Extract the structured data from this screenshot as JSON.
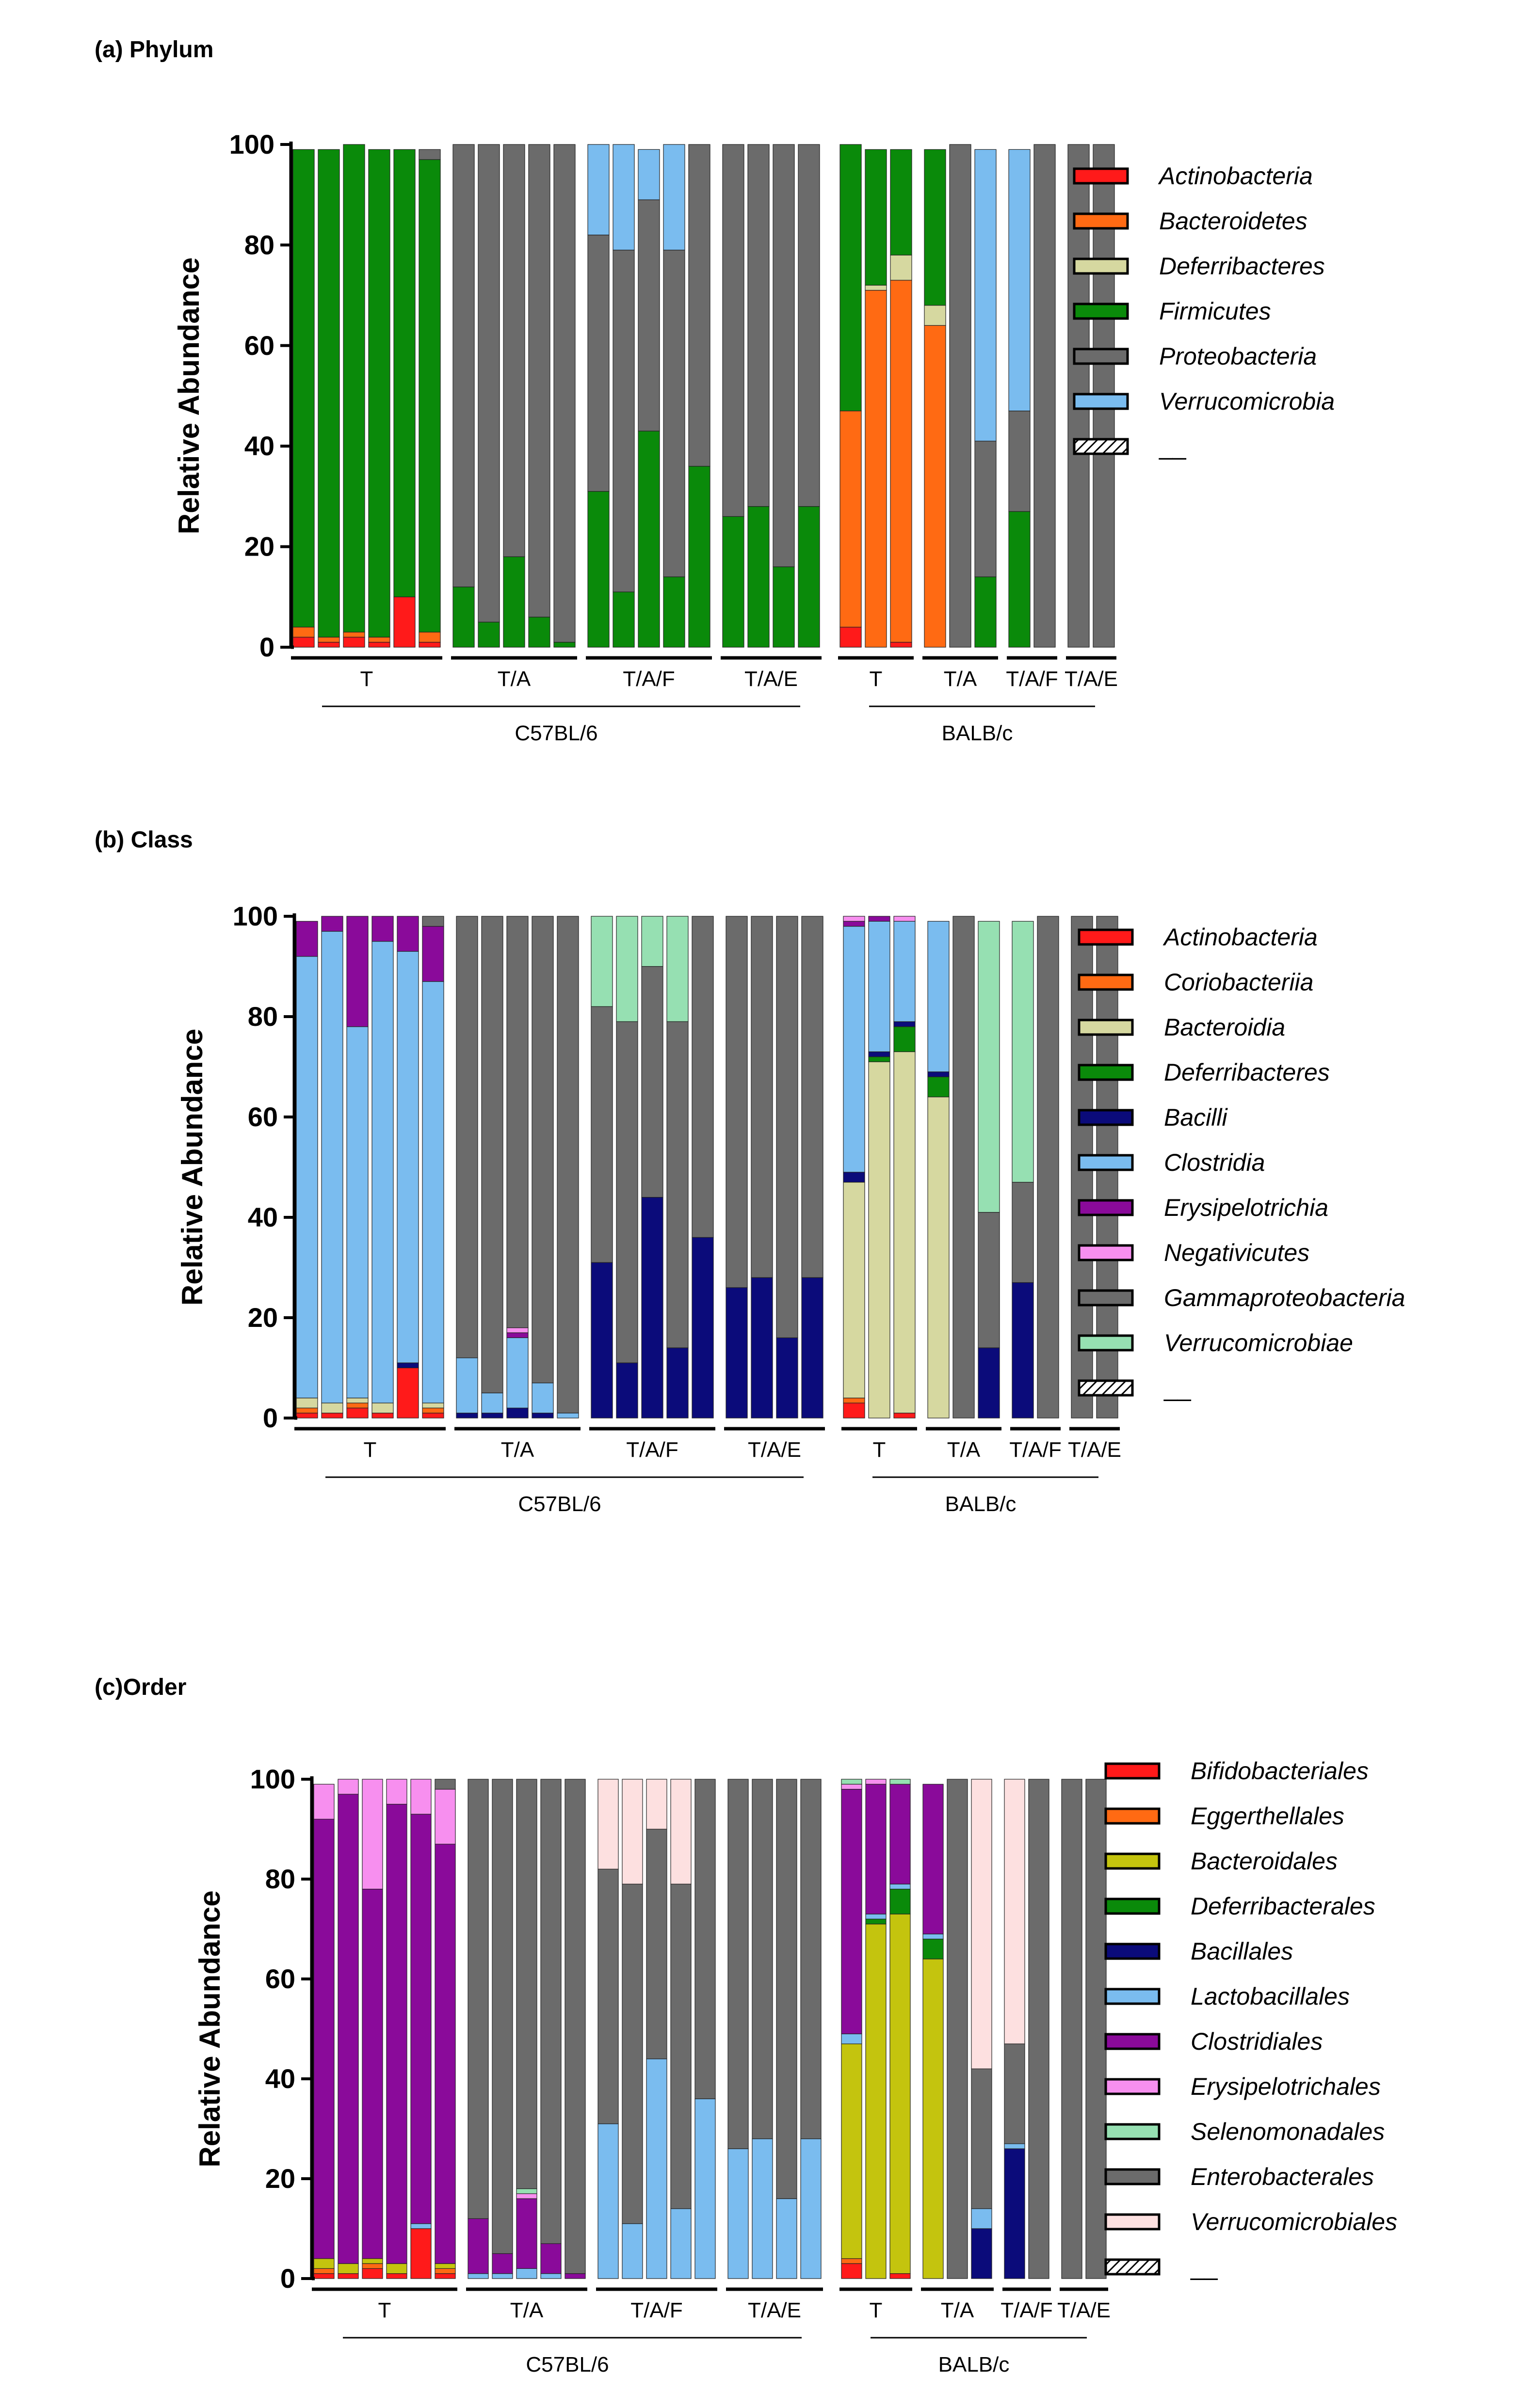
{
  "chart_data": [
    {
      "type": "stacked-bar",
      "panel_label": "(a) Phylum",
      "title": "Phylum",
      "ylabel": "Relative Abundance",
      "ylim": [
        0,
        100
      ],
      "yticks": [
        "0",
        "20",
        "40",
        "60",
        "80",
        "100"
      ],
      "groups": [
        {
          "label": "T",
          "strain": "C57BL/6",
          "bar_count": 6
        },
        {
          "label": "T/A",
          "strain": "C57BL/6",
          "bar_count": 5
        },
        {
          "label": "T/A/F",
          "strain": "C57BL/6",
          "bar_count": 5
        },
        {
          "label": "T/A/E",
          "strain": "C57BL/6",
          "bar_count": 4
        },
        {
          "label": "T",
          "strain": "BALB/c",
          "bar_count": 3
        },
        {
          "label": "T/A",
          "strain": "BALB/c",
          "bar_count": 3
        },
        {
          "label": "T/A/F",
          "strain": "BALB/c",
          "bar_count": 2
        },
        {
          "label": "T/A/E",
          "strain": "BALB/c",
          "bar_count": 2
        }
      ],
      "strains": [
        "C57BL/6",
        "BALB/c"
      ],
      "series": [
        {
          "name": "Actinobacteria",
          "color": "#ff1a1a",
          "values": [
            2,
            1,
            2,
            1,
            10,
            1,
            0,
            0,
            0,
            0,
            0,
            0,
            0,
            0,
            0,
            0,
            0,
            0,
            0,
            0,
            4,
            0,
            1,
            0,
            0,
            0,
            0,
            0,
            0,
            0
          ]
        },
        {
          "name": "Bacteroidetes",
          "color": "#ff6a13",
          "values": [
            2,
            1,
            1,
            1,
            0,
            2,
            0,
            0,
            0,
            0,
            0,
            0,
            0,
            0,
            0,
            0,
            0,
            0,
            0,
            0,
            43,
            71,
            72,
            64,
            0,
            0,
            0,
            0,
            0,
            0
          ]
        },
        {
          "name": "Deferribacteres",
          "color": "#d6d8a0",
          "values": [
            0,
            0,
            0,
            0,
            0,
            0,
            0,
            0,
            0,
            0,
            0,
            0,
            0,
            0,
            0,
            0,
            0,
            0,
            0,
            0,
            0,
            1,
            5,
            4,
            0,
            0,
            0,
            0,
            0,
            0
          ]
        },
        {
          "name": "Firmicutes",
          "color": "#0a8a0a",
          "values": [
            95,
            97,
            97,
            97,
            89,
            94,
            12,
            5,
            18,
            6,
            1,
            31,
            11,
            43,
            14,
            36,
            26,
            28,
            16,
            28,
            53,
            27,
            21,
            31,
            0,
            14,
            27,
            0,
            0,
            0
          ]
        },
        {
          "name": "Proteobacteria",
          "color": "#6b6b6b",
          "values": [
            0,
            0,
            0,
            0,
            0,
            2,
            88,
            95,
            82,
            94,
            99,
            51,
            68,
            46,
            65,
            64,
            74,
            72,
            84,
            72,
            0,
            0,
            0,
            0,
            100,
            27,
            20,
            100,
            100,
            100
          ]
        },
        {
          "name": "Verrucomicrobia",
          "color": "#7abcef",
          "values": [
            0,
            0,
            0,
            0,
            0,
            0,
            0,
            0,
            0,
            0,
            0,
            18,
            21,
            10,
            21,
            0,
            0,
            0,
            0,
            0,
            0,
            0,
            0,
            0,
            0,
            58,
            52,
            0,
            0,
            0
          ]
        },
        {
          "name": "__",
          "color": "#ffffff",
          "hatched": true,
          "values": []
        }
      ]
    },
    {
      "type": "stacked-bar",
      "panel_label": "(b) Class",
      "title": "Class",
      "ylabel": "Relative Abundance",
      "ylim": [
        0,
        100
      ],
      "yticks": [
        "0",
        "20",
        "40",
        "60",
        "80",
        "100"
      ],
      "groups": [
        {
          "label": "T",
          "strain": "C57BL/6",
          "bar_count": 6
        },
        {
          "label": "T/A",
          "strain": "C57BL/6",
          "bar_count": 5
        },
        {
          "label": "T/A/F",
          "strain": "C57BL/6",
          "bar_count": 5
        },
        {
          "label": "T/A/E",
          "strain": "C57BL/6",
          "bar_count": 4
        },
        {
          "label": "T",
          "strain": "BALB/c",
          "bar_count": 3
        },
        {
          "label": "T/A",
          "strain": "BALB/c",
          "bar_count": 3
        },
        {
          "label": "T/A/F",
          "strain": "BALB/c",
          "bar_count": 2
        },
        {
          "label": "T/A/E",
          "strain": "BALB/c",
          "bar_count": 2
        }
      ],
      "strains": [
        "C57BL/6",
        "BALB/c"
      ],
      "series": [
        {
          "name": "Actinobacteria",
          "color": "#ff1a1a",
          "values": [
            1,
            1,
            2,
            1,
            10,
            1,
            0,
            0,
            0,
            0,
            0,
            0,
            0,
            0,
            0,
            0,
            0,
            0,
            0,
            0,
            3,
            0,
            1,
            0,
            0,
            0,
            0,
            0,
            0,
            0
          ]
        },
        {
          "name": "Coriobacteriia",
          "color": "#ff6a13",
          "values": [
            1,
            0,
            1,
            0,
            0,
            1,
            0,
            0,
            0,
            0,
            0,
            0,
            0,
            0,
            0,
            0,
            0,
            0,
            0,
            0,
            1,
            0,
            0,
            0,
            0,
            0,
            0,
            0,
            0,
            0
          ]
        },
        {
          "name": "Bacteroidia",
          "color": "#d6d8a0",
          "values": [
            2,
            2,
            1,
            2,
            0,
            1,
            0,
            0,
            0,
            0,
            0,
            0,
            0,
            0,
            0,
            0,
            0,
            0,
            0,
            0,
            43,
            71,
            72,
            64,
            0,
            0,
            0,
            0,
            0,
            0
          ]
        },
        {
          "name": "Deferribacteres",
          "color": "#0a8a0a",
          "values": [
            0,
            0,
            0,
            0,
            0,
            0,
            0,
            0,
            0,
            0,
            0,
            0,
            0,
            0,
            0,
            0,
            0,
            0,
            0,
            0,
            0,
            1,
            5,
            4,
            0,
            0,
            0,
            0,
            0,
            0
          ]
        },
        {
          "name": "Bacilli",
          "color": "#0b0b7a",
          "values": [
            0,
            0,
            0,
            0,
            1,
            0,
            1,
            1,
            2,
            1,
            0,
            31,
            11,
            44,
            14,
            36,
            26,
            28,
            16,
            28,
            2,
            1,
            1,
            1,
            0,
            14,
            27,
            0,
            0,
            0
          ]
        },
        {
          "name": "Clostridia",
          "color": "#7abcef",
          "values": [
            88,
            94,
            74,
            92,
            82,
            84,
            11,
            4,
            14,
            6,
            1,
            0,
            0,
            0,
            0,
            0,
            0,
            0,
            0,
            0,
            49,
            26,
            20,
            30,
            0,
            0,
            0,
            0,
            0,
            0
          ]
        },
        {
          "name": "Erysipelotrichia",
          "color": "#8a0a9a",
          "values": [
            7,
            3,
            22,
            5,
            7,
            11,
            0,
            0,
            1,
            0,
            0,
            0,
            0,
            0,
            0,
            0,
            0,
            0,
            0,
            0,
            1,
            1,
            0,
            0,
            0,
            0,
            0,
            0,
            0,
            0
          ]
        },
        {
          "name": "Negativicutes",
          "color": "#f78fef",
          "values": [
            0,
            0,
            0,
            0,
            0,
            0,
            0,
            0,
            1,
            0,
            0,
            0,
            0,
            0,
            0,
            0,
            0,
            0,
            0,
            0,
            1,
            0,
            1,
            0,
            0,
            0,
            0,
            0,
            0,
            0
          ]
        },
        {
          "name": "Gammaproteobacteria",
          "color": "#6b6b6b",
          "values": [
            0,
            0,
            0,
            0,
            0,
            2,
            88,
            95,
            82,
            93,
            99,
            51,
            68,
            46,
            65,
            64,
            74,
            72,
            84,
            72,
            0,
            0,
            0,
            0,
            100,
            27,
            20,
            100,
            100,
            100
          ]
        },
        {
          "name": "Verrucomicrobiae",
          "color": "#96e0b2",
          "values": [
            0,
            0,
            0,
            0,
            0,
            0,
            0,
            0,
            0,
            0,
            0,
            18,
            21,
            10,
            21,
            0,
            0,
            0,
            0,
            0,
            0,
            0,
            0,
            0,
            0,
            58,
            52,
            0,
            0,
            0
          ]
        },
        {
          "name": "__",
          "color": "#ffffff",
          "hatched": true,
          "values": []
        }
      ]
    },
    {
      "type": "stacked-bar",
      "panel_label": "(c)Order",
      "title": "Order",
      "ylabel": "Relative Abundance",
      "ylim": [
        0,
        100
      ],
      "yticks": [
        "0",
        "20",
        "40",
        "60",
        "80",
        "100"
      ],
      "groups": [
        {
          "label": "T",
          "strain": "C57BL/6",
          "bar_count": 6
        },
        {
          "label": "T/A",
          "strain": "C57BL/6",
          "bar_count": 5
        },
        {
          "label": "T/A/F",
          "strain": "C57BL/6",
          "bar_count": 5
        },
        {
          "label": "T/A/E",
          "strain": "C57BL/6",
          "bar_count": 4
        },
        {
          "label": "T",
          "strain": "BALB/c",
          "bar_count": 3
        },
        {
          "label": "T/A",
          "strain": "BALB/c",
          "bar_count": 3
        },
        {
          "label": "T/A/F",
          "strain": "BALB/c",
          "bar_count": 2
        },
        {
          "label": "T/A/E",
          "strain": "BALB/c",
          "bar_count": 2
        }
      ],
      "strains": [
        "C57BL/6",
        "BALB/c"
      ],
      "series": [
        {
          "name": "Bifidobacteriales",
          "color": "#ff1a1a",
          "values": [
            1,
            1,
            2,
            1,
            10,
            1,
            0,
            0,
            0,
            0,
            0,
            0,
            0,
            0,
            0,
            0,
            0,
            0,
            0,
            0,
            3,
            0,
            1,
            0,
            0,
            0,
            0,
            0,
            0,
            0
          ]
        },
        {
          "name": "Eggerthellales",
          "color": "#ff6a13",
          "values": [
            1,
            0,
            1,
            0,
            0,
            1,
            0,
            0,
            0,
            0,
            0,
            0,
            0,
            0,
            0,
            0,
            0,
            0,
            0,
            0,
            1,
            0,
            0,
            0,
            0,
            0,
            0,
            0,
            0,
            0
          ]
        },
        {
          "name": "Bacteroidales",
          "color": "#c4c40e",
          "values": [
            2,
            2,
            1,
            2,
            0,
            1,
            0,
            0,
            0,
            0,
            0,
            0,
            0,
            0,
            0,
            0,
            0,
            0,
            0,
            0,
            43,
            71,
            72,
            64,
            0,
            0,
            0,
            0,
            0,
            0
          ]
        },
        {
          "name": "Deferribacterales",
          "color": "#0a8a0a",
          "values": [
            0,
            0,
            0,
            0,
            0,
            0,
            0,
            0,
            0,
            0,
            0,
            0,
            0,
            0,
            0,
            0,
            0,
            0,
            0,
            0,
            0,
            1,
            5,
            4,
            0,
            0,
            0,
            0,
            0,
            0
          ]
        },
        {
          "name": "Bacillales",
          "color": "#0b0b7a",
          "values": [
            0,
            0,
            0,
            0,
            0,
            0,
            0,
            0,
            0,
            0,
            0,
            0,
            0,
            0,
            0,
            0,
            0,
            0,
            0,
            0,
            0,
            0,
            0,
            0,
            0,
            10,
            26,
            0,
            0,
            0
          ]
        },
        {
          "name": "Lactobacillales",
          "color": "#7abcef",
          "values": [
            0,
            0,
            0,
            0,
            1,
            0,
            1,
            1,
            2,
            1,
            0,
            31,
            11,
            44,
            14,
            36,
            26,
            28,
            16,
            28,
            2,
            1,
            1,
            1,
            0,
            4,
            1,
            0,
            0,
            0
          ]
        },
        {
          "name": "Clostridiales",
          "color": "#8a0a9a",
          "values": [
            88,
            94,
            74,
            92,
            82,
            84,
            11,
            4,
            14,
            6,
            1,
            0,
            0,
            0,
            0,
            0,
            0,
            0,
            0,
            0,
            49,
            26,
            20,
            30,
            0,
            0,
            0,
            0,
            0,
            0
          ]
        },
        {
          "name": "Erysipelotrichales",
          "color": "#f78fef",
          "values": [
            7,
            3,
            22,
            5,
            7,
            11,
            0,
            0,
            1,
            0,
            0,
            0,
            0,
            0,
            0,
            0,
            0,
            0,
            0,
            0,
            1,
            1,
            0,
            0,
            0,
            0,
            0,
            0,
            0,
            0
          ]
        },
        {
          "name": "Selenomonadales",
          "color": "#96e0b2",
          "values": [
            0,
            0,
            0,
            0,
            0,
            0,
            0,
            0,
            1,
            0,
            0,
            0,
            0,
            0,
            0,
            0,
            0,
            0,
            0,
            0,
            1,
            0,
            1,
            0,
            0,
            0,
            0,
            0,
            0,
            0
          ]
        },
        {
          "name": "Enterobacterales",
          "color": "#6b6b6b",
          "values": [
            0,
            0,
            0,
            0,
            0,
            2,
            88,
            95,
            82,
            93,
            99,
            51,
            68,
            46,
            65,
            64,
            74,
            72,
            84,
            72,
            0,
            0,
            0,
            0,
            100,
            28,
            20,
            100,
            100,
            100
          ]
        },
        {
          "name": "Verrucomicrobiales",
          "color": "#fde0e0",
          "values": [
            0,
            0,
            0,
            0,
            0,
            0,
            0,
            0,
            0,
            0,
            0,
            18,
            21,
            10,
            21,
            0,
            0,
            0,
            0,
            0,
            0,
            0,
            0,
            0,
            0,
            58,
            53,
            0,
            0,
            0
          ]
        },
        {
          "name": "__",
          "color": "#ffffff",
          "hatched": true,
          "values": []
        }
      ]
    }
  ]
}
